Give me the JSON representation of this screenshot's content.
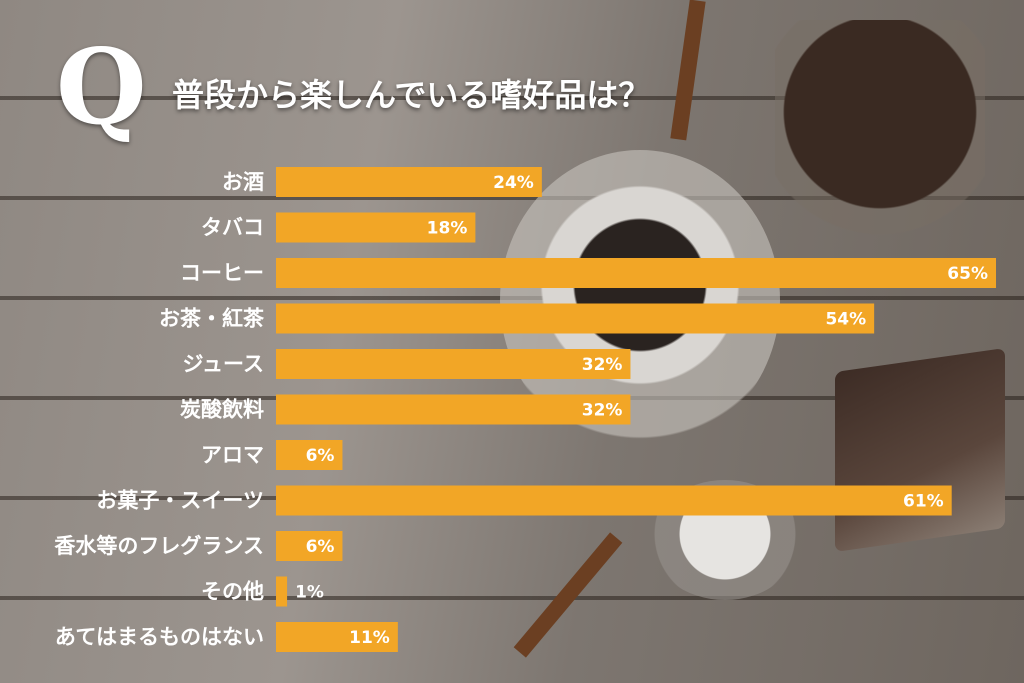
{
  "header": {
    "q_letter": "Q",
    "title": "普段から楽しんでいる嗜好品は？"
  },
  "colors": {
    "bar": "#f2a626",
    "text": "#ffffff"
  },
  "chart_data": {
    "type": "bar",
    "orientation": "horizontal",
    "title": "普段から楽しんでいる嗜好品は？",
    "categories": [
      "お酒",
      "タバコ",
      "コーヒー",
      "お茶・紅茶",
      "ジュース",
      "炭酸飲料",
      "アロマ",
      "お菓子・スイーツ",
      "香水等のフレグランス",
      "その他",
      "あてはまるものはない"
    ],
    "values": [
      24,
      18,
      65,
      54,
      32,
      32,
      6,
      61,
      6,
      1,
      11
    ],
    "value_labels": [
      "24%",
      "18%",
      "65%",
      "54%",
      "32%",
      "32%",
      "6%",
      "61%",
      "6%",
      "1%",
      "11%"
    ],
    "unit": "%",
    "xlim": [
      0,
      65
    ],
    "grid": false,
    "legend": "none"
  }
}
